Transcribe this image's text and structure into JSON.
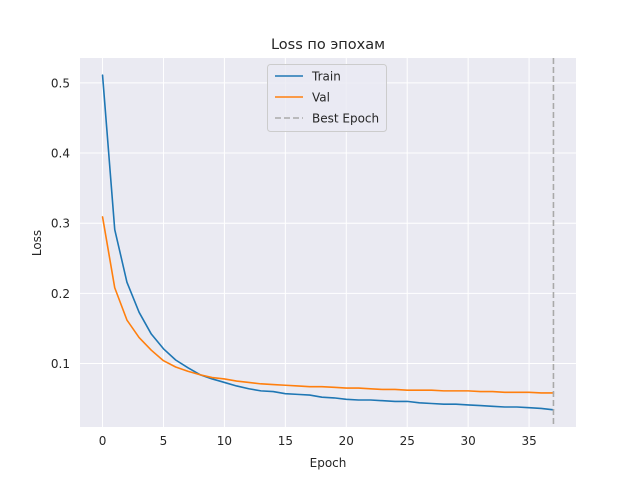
{
  "chart_data": {
    "type": "line",
    "title": "Loss по эпохам",
    "xlabel": "Epoch",
    "ylabel": "Loss",
    "xlim": [
      -1.85,
      38.85
    ],
    "ylim": [
      0.0095,
      0.5355
    ],
    "xticks": [
      0,
      5,
      10,
      15,
      20,
      25,
      30,
      35
    ],
    "yticks": [
      0.1,
      0.2,
      0.3,
      0.4,
      0.5
    ],
    "grid": true,
    "legend_position": "top-center",
    "best_epoch": 37,
    "best_epoch_label": "Best Epoch",
    "series": [
      {
        "name": "Train",
        "color": "#1f77b4",
        "x": [
          0,
          1,
          2,
          3,
          4,
          5,
          6,
          7,
          8,
          9,
          10,
          11,
          12,
          13,
          14,
          15,
          16,
          17,
          18,
          19,
          20,
          21,
          22,
          23,
          24,
          25,
          26,
          27,
          28,
          29,
          30,
          31,
          32,
          33,
          34,
          35,
          36,
          37
        ],
        "values": [
          0.511,
          0.291,
          0.216,
          0.173,
          0.142,
          0.121,
          0.105,
          0.094,
          0.084,
          0.078,
          0.073,
          0.068,
          0.064,
          0.061,
          0.06,
          0.057,
          0.056,
          0.055,
          0.052,
          0.051,
          0.049,
          0.048,
          0.048,
          0.047,
          0.046,
          0.046,
          0.044,
          0.043,
          0.042,
          0.042,
          0.041,
          0.04,
          0.039,
          0.038,
          0.038,
          0.037,
          0.036,
          0.034
        ]
      },
      {
        "name": "Val",
        "color": "#ff7f0e",
        "x": [
          0,
          1,
          2,
          3,
          4,
          5,
          6,
          7,
          8,
          9,
          10,
          11,
          12,
          13,
          14,
          15,
          16,
          17,
          18,
          19,
          20,
          21,
          22,
          23,
          24,
          25,
          26,
          27,
          28,
          29,
          30,
          31,
          32,
          33,
          34,
          35,
          36,
          37
        ],
        "values": [
          0.309,
          0.208,
          0.162,
          0.137,
          0.119,
          0.104,
          0.095,
          0.089,
          0.084,
          0.08,
          0.078,
          0.075,
          0.073,
          0.071,
          0.07,
          0.069,
          0.068,
          0.067,
          0.067,
          0.066,
          0.065,
          0.065,
          0.064,
          0.063,
          0.063,
          0.062,
          0.062,
          0.062,
          0.061,
          0.061,
          0.061,
          0.06,
          0.06,
          0.059,
          0.059,
          0.059,
          0.058,
          0.058
        ]
      }
    ]
  },
  "colors": {
    "plot_background": "#eaeaf2",
    "grid": "#ffffff",
    "best_epoch_line": "#a9a9a9"
  }
}
